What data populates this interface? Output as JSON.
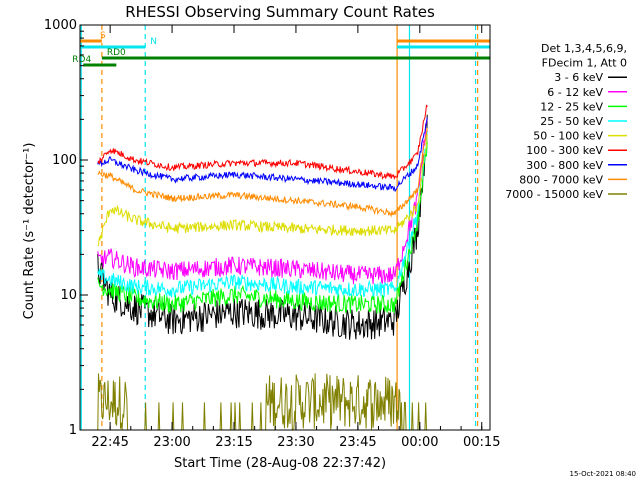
{
  "chart_data": {
    "type": "line",
    "title": "RHESSI Observing Summary Count Rates",
    "xlabel": "Start Time (28-Aug-08 22:37:42)",
    "ylabel": "Count Rate (s⁻¹ detector⁻¹)",
    "y_scale": "log",
    "ylim": [
      1,
      1000
    ],
    "xlim": [
      "22:37:42",
      "00:17:00"
    ],
    "x_ticks": [
      "22:45",
      "23:00",
      "23:15",
      "23:30",
      "23:45",
      "00:00",
      "00:15"
    ],
    "y_ticks": [
      "1",
      "10",
      "100",
      "1000"
    ],
    "timestamp": "15-Oct-2021 08:40",
    "legend": {
      "placement": "right",
      "header": [
        "Det 1,3,4,5,6,9,",
        "FDecim 1, Att 0"
      ]
    },
    "flags": [
      {
        "label": "S",
        "color": "#ff8c00",
        "start": "22:37:42",
        "end": "22:43:00"
      },
      {
        "label": "N",
        "color": "#00e5ee",
        "start": "22:37:42",
        "end": "22:53:30"
      },
      {
        "label": "RD0",
        "color": "#008000",
        "start": "22:43:00",
        "end": "00:17:00"
      },
      {
        "label": "RD4",
        "color": "#008000",
        "start": "22:38:30",
        "end": "22:46:30"
      }
    ],
    "series": [
      {
        "name": "3 - 6 keV",
        "color": "#000000",
        "values": [
          [
            22.7,
            16
          ],
          [
            22.75,
            10
          ],
          [
            22.85,
            8.0
          ],
          [
            23.0,
            6.5
          ],
          [
            23.25,
            7.5
          ],
          [
            23.5,
            7
          ],
          [
            23.75,
            6
          ],
          [
            23.9,
            6.5
          ],
          [
            23.99,
            30
          ],
          [
            24.03,
            170
          ]
        ]
      },
      {
        "name": "6 - 12 keV",
        "color": "#ff00ff",
        "values": [
          [
            22.7,
            18
          ],
          [
            22.75,
            19
          ],
          [
            22.85,
            16
          ],
          [
            23.0,
            15
          ],
          [
            23.25,
            16.5
          ],
          [
            23.5,
            15.5
          ],
          [
            23.75,
            14
          ],
          [
            23.9,
            14
          ],
          [
            23.99,
            50
          ],
          [
            24.03,
            210
          ]
        ]
      },
      {
        "name": "12 - 25 keV",
        "color": "#00ff00",
        "values": [
          [
            22.7,
            12
          ],
          [
            22.75,
            11
          ],
          [
            22.85,
            9.5
          ],
          [
            23.0,
            8.5
          ],
          [
            23.25,
            10
          ],
          [
            23.5,
            9
          ],
          [
            23.75,
            8.5
          ],
          [
            23.9,
            8.5
          ],
          [
            23.99,
            35
          ],
          [
            24.03,
            130
          ]
        ]
      },
      {
        "name": "25 - 50 keV",
        "color": "#00ffff",
        "values": [
          [
            22.7,
            14
          ],
          [
            22.75,
            13
          ],
          [
            22.85,
            11.5
          ],
          [
            23.0,
            11
          ],
          [
            23.25,
            12.5
          ],
          [
            23.5,
            11.5
          ],
          [
            23.75,
            11
          ],
          [
            23.9,
            11
          ],
          [
            23.99,
            40
          ],
          [
            24.03,
            150
          ]
        ]
      },
      {
        "name": "50 - 100 keV",
        "color": "#dddd00",
        "values": [
          [
            22.7,
            23
          ],
          [
            22.75,
            44
          ],
          [
            22.85,
            36
          ],
          [
            23.0,
            31
          ],
          [
            23.25,
            33
          ],
          [
            23.5,
            31
          ],
          [
            23.75,
            30
          ],
          [
            23.9,
            30
          ],
          [
            23.99,
            45
          ],
          [
            24.03,
            150
          ]
        ]
      },
      {
        "name": "100 - 300 keV",
        "color": "#ff0000",
        "values": [
          [
            22.7,
            95
          ],
          [
            22.75,
            120
          ],
          [
            22.85,
            100
          ],
          [
            23.0,
            88
          ],
          [
            23.25,
            95
          ],
          [
            23.5,
            95
          ],
          [
            23.75,
            82
          ],
          [
            23.9,
            75
          ],
          [
            23.99,
            110
          ],
          [
            24.03,
            260
          ]
        ]
      },
      {
        "name": "300 - 800 keV",
        "color": "#0000ff",
        "values": [
          [
            22.7,
            93
          ],
          [
            22.75,
            100
          ],
          [
            22.85,
            84
          ],
          [
            23.0,
            72
          ],
          [
            23.25,
            78
          ],
          [
            23.5,
            72
          ],
          [
            23.75,
            66
          ],
          [
            23.9,
            62
          ],
          [
            23.99,
            90
          ],
          [
            24.03,
            200
          ]
        ]
      },
      {
        "name": "800 - 7000 keV",
        "color": "#ff8c00",
        "values": [
          [
            22.7,
            80
          ],
          [
            22.75,
            76
          ],
          [
            22.85,
            60
          ],
          [
            23.0,
            52
          ],
          [
            23.25,
            55
          ],
          [
            23.5,
            50
          ],
          [
            23.75,
            45
          ],
          [
            23.9,
            40
          ],
          [
            23.99,
            60
          ],
          [
            24.03,
            180
          ]
        ]
      },
      {
        "name": "7000 - 15000 keV",
        "color": "#808000",
        "values": [
          [
            22.7,
            1.8
          ],
          [
            22.75,
            1.8
          ],
          [
            22.85,
            1
          ],
          [
            23.0,
            1
          ],
          [
            23.25,
            1
          ],
          [
            23.4,
            1.7
          ],
          [
            23.5,
            1.8
          ],
          [
            23.75,
            1.4
          ],
          [
            23.9,
            1.0
          ],
          [
            23.99,
            2.5
          ],
          [
            24.03,
            7
          ]
        ]
      }
    ],
    "vlines": [
      {
        "time": "22:38:00",
        "color": "#00e5ee",
        "style": "solid"
      },
      {
        "time": "22:43:00",
        "color": "#ff8c00",
        "style": "dashed"
      },
      {
        "time": "22:53:30",
        "color": "#00e5ee",
        "style": "dashed"
      },
      {
        "time": "23:54:30",
        "color": "#ff8c00",
        "style": "solid"
      },
      {
        "time": "23:57:30",
        "color": "#00e5ee",
        "style": "solid"
      },
      {
        "time": "00:13:30",
        "color": "#00e5ee",
        "style": "dashed"
      },
      {
        "time": "00:14:00",
        "color": "#ff8c00",
        "style": "dashed"
      }
    ]
  }
}
